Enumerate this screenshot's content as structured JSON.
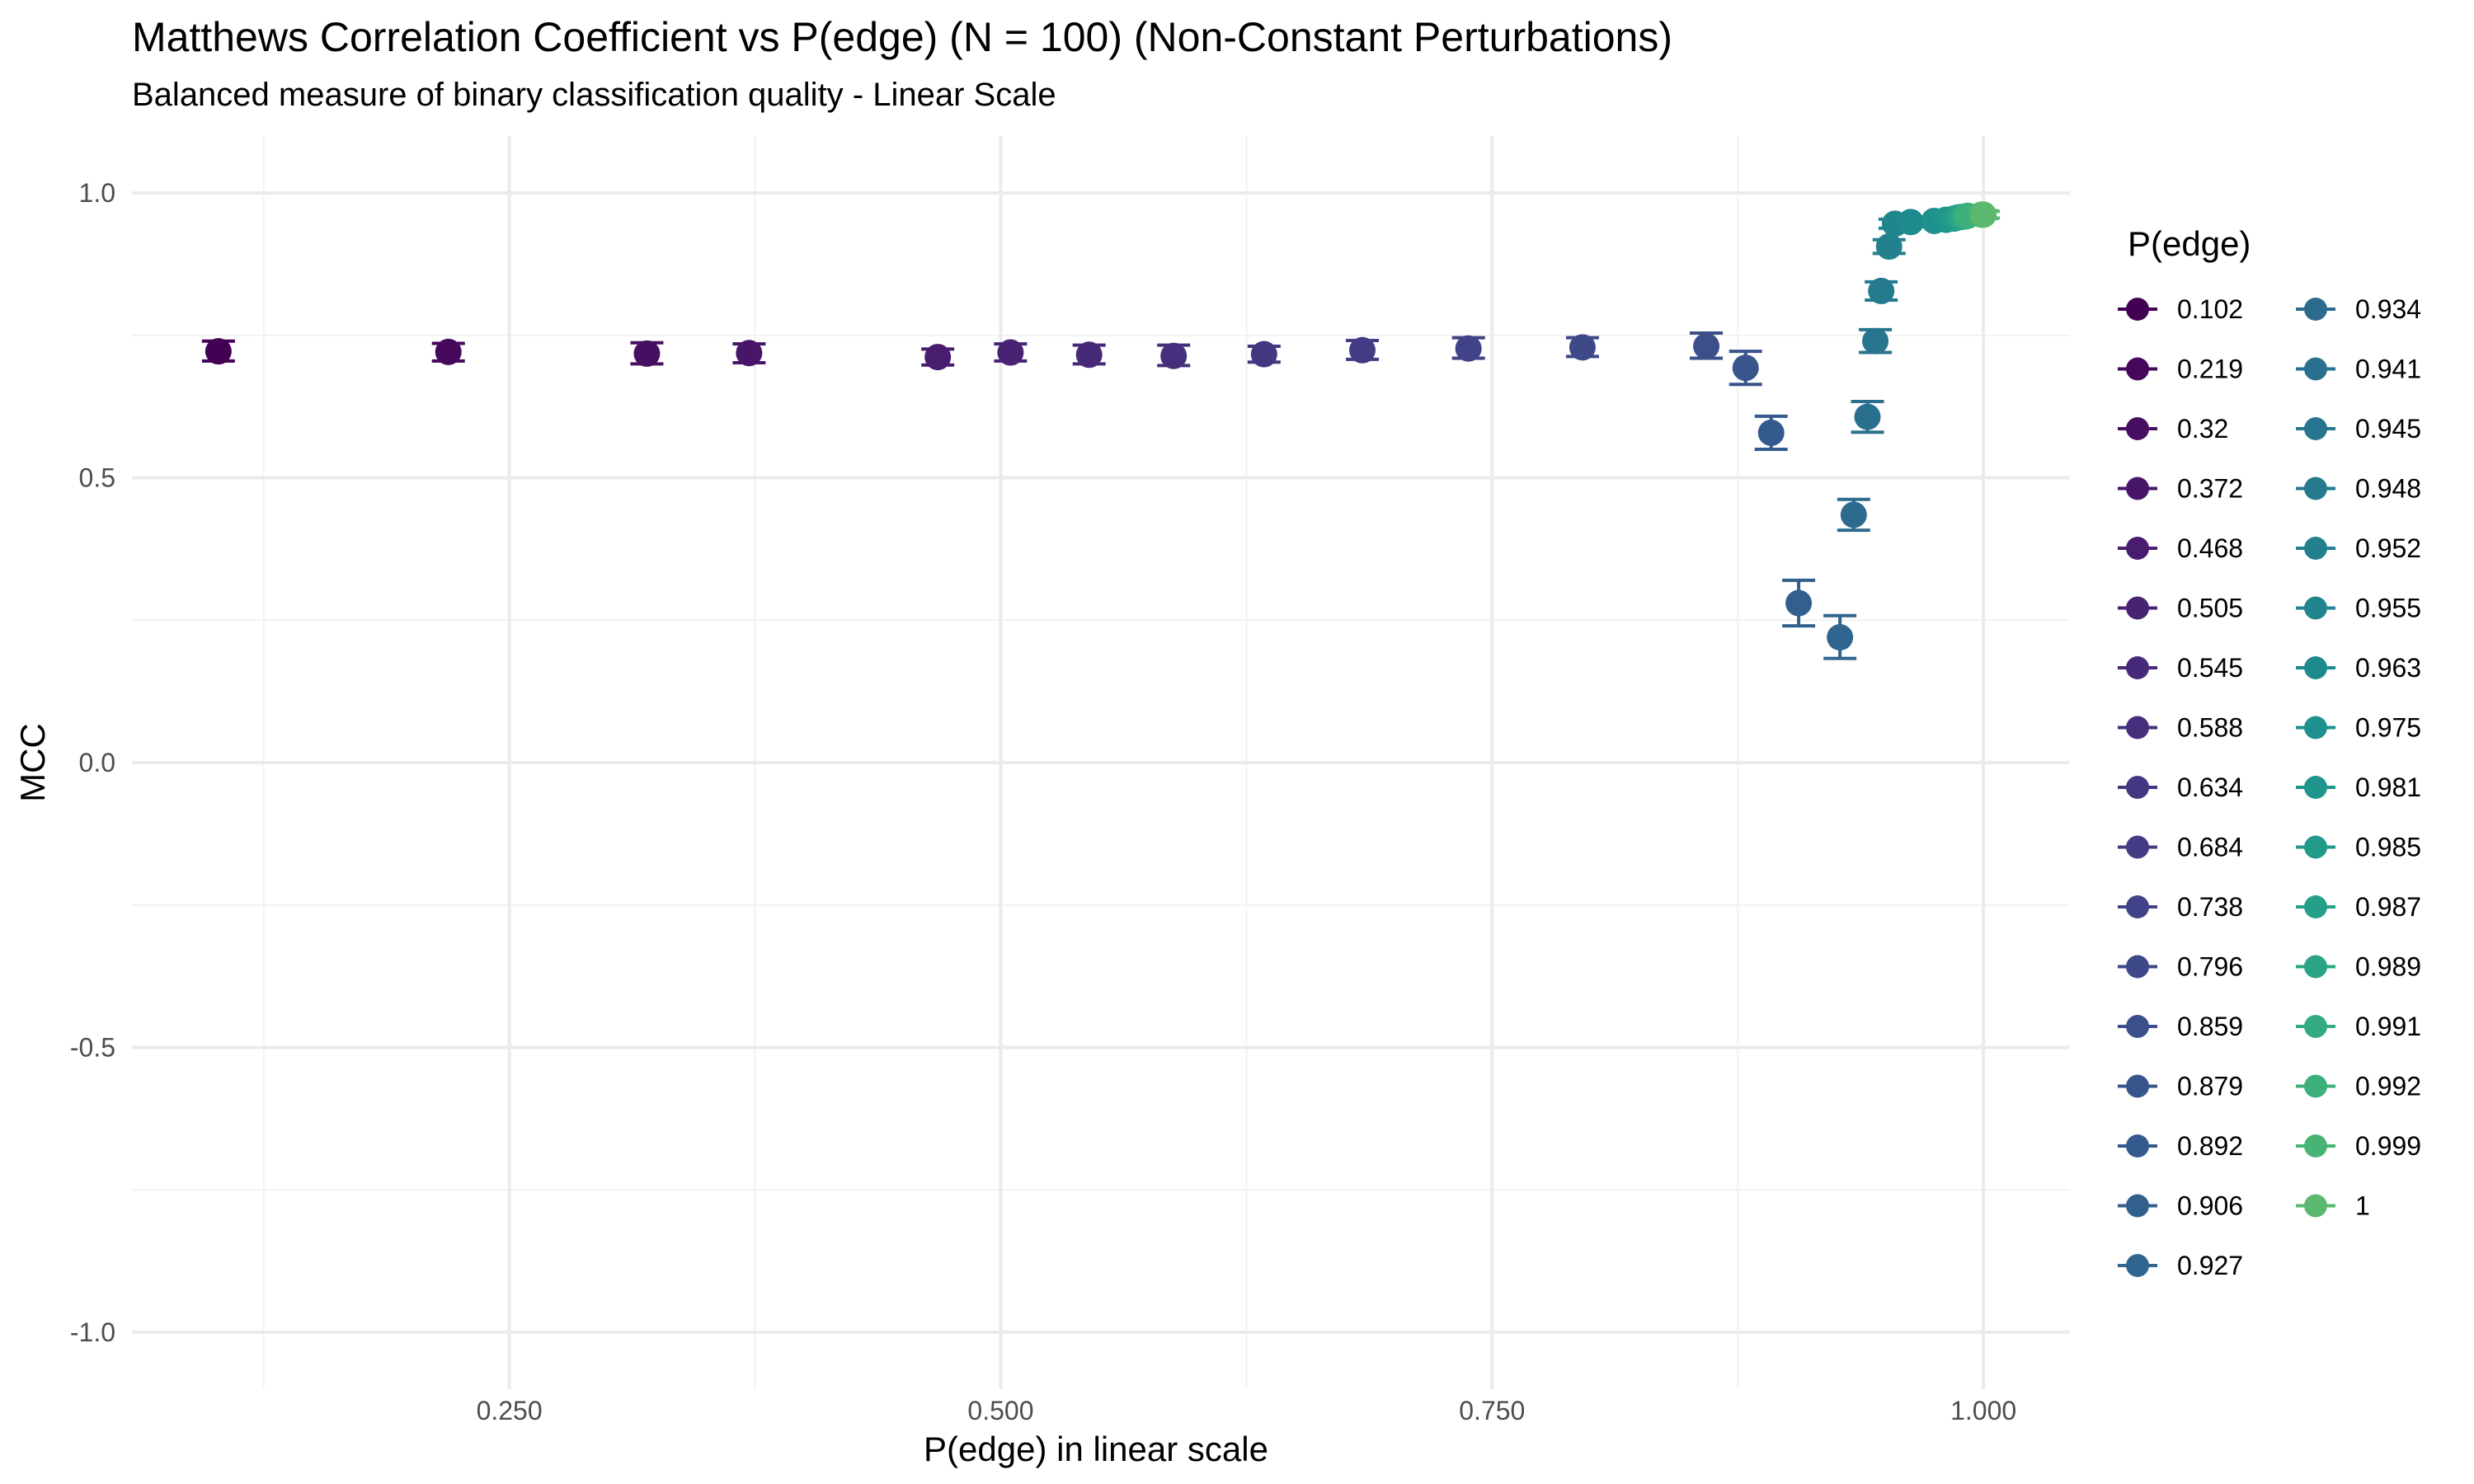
{
  "chart_data": {
    "type": "scatter",
    "title": "Matthews Correlation Coefficient vs P(edge) (N = 100) (Non-Constant Perturbations)",
    "subtitle": "Balanced measure of binary classification quality - Linear Scale",
    "xlabel": "P(edge) in linear scale",
    "ylabel": "MCC",
    "xlim": [
      0.058,
      1.044
    ],
    "ylim": [
      -1.1,
      1.1
    ],
    "x_ticks": [
      0.25,
      0.5,
      0.75,
      1.0
    ],
    "x_tick_labels": [
      "0.250",
      "0.500",
      "0.750",
      "1.000"
    ],
    "y_ticks": [
      1.0,
      0.5,
      0.0,
      -0.5,
      -1.0
    ],
    "y_tick_labels": [
      "1.0",
      "0.5",
      "0.0",
      "-0.5",
      "-1.0"
    ],
    "grid": true,
    "legend_title": "P(edge)",
    "legend_position": "right",
    "error_bars": true,
    "points": [
      {
        "label": "0.102",
        "x": 0.102,
        "y": 0.722,
        "ymin": 0.705,
        "ymax": 0.74,
        "color": "#440154"
      },
      {
        "label": "0.219",
        "x": 0.219,
        "y": 0.721,
        "ymin": 0.705,
        "ymax": 0.736,
        "color": "#45085b"
      },
      {
        "label": "0.32",
        "x": 0.32,
        "y": 0.718,
        "ymin": 0.7,
        "ymax": 0.737,
        "color": "#470f62"
      },
      {
        "label": "0.372",
        "x": 0.372,
        "y": 0.719,
        "ymin": 0.702,
        "ymax": 0.735,
        "color": "#471669"
      },
      {
        "label": "0.468",
        "x": 0.468,
        "y": 0.712,
        "ymin": 0.698,
        "ymax": 0.726,
        "color": "#481c6e"
      },
      {
        "label": "0.505",
        "x": 0.505,
        "y": 0.72,
        "ymin": 0.705,
        "ymax": 0.735,
        "color": "#482374"
      },
      {
        "label": "0.545",
        "x": 0.545,
        "y": 0.716,
        "ymin": 0.7,
        "ymax": 0.733,
        "color": "#472979"
      },
      {
        "label": "0.588",
        "x": 0.588,
        "y": 0.714,
        "ymin": 0.697,
        "ymax": 0.733,
        "color": "#46307d"
      },
      {
        "label": "0.634",
        "x": 0.634,
        "y": 0.717,
        "ymin": 0.703,
        "ymax": 0.731,
        "color": "#453681"
      },
      {
        "label": "0.684",
        "x": 0.684,
        "y": 0.724,
        "ymin": 0.708,
        "ymax": 0.741,
        "color": "#433c84"
      },
      {
        "label": "0.738",
        "x": 0.738,
        "y": 0.727,
        "ymin": 0.71,
        "ymax": 0.746,
        "color": "#414287"
      },
      {
        "label": "0.796",
        "x": 0.796,
        "y": 0.729,
        "ymin": 0.713,
        "ymax": 0.746,
        "color": "#3e4989"
      },
      {
        "label": "0.859",
        "x": 0.859,
        "y": 0.731,
        "ymin": 0.71,
        "ymax": 0.754,
        "color": "#3b4f8a"
      },
      {
        "label": "0.879",
        "x": 0.879,
        "y": 0.693,
        "ymin": 0.664,
        "ymax": 0.722,
        "color": "#38558c"
      },
      {
        "label": "0.892",
        "x": 0.892,
        "y": 0.579,
        "ymin": 0.55,
        "ymax": 0.608,
        "color": "#355a8d"
      },
      {
        "label": "0.906",
        "x": 0.906,
        "y": 0.28,
        "ymin": 0.24,
        "ymax": 0.32,
        "color": "#32608d"
      },
      {
        "label": "0.927",
        "x": 0.927,
        "y": 0.22,
        "ymin": 0.183,
        "ymax": 0.258,
        "color": "#2f658e"
      },
      {
        "label": "0.934",
        "x": 0.934,
        "y": 0.435,
        "ymin": 0.408,
        "ymax": 0.462,
        "color": "#2c6b8e"
      },
      {
        "label": "0.941",
        "x": 0.941,
        "y": 0.607,
        "ymin": 0.58,
        "ymax": 0.634,
        "color": "#2a708e"
      },
      {
        "label": "0.945",
        "x": 0.945,
        "y": 0.74,
        "ymin": 0.72,
        "ymax": 0.76,
        "color": "#27758e"
      },
      {
        "label": "0.948",
        "x": 0.948,
        "y": 0.828,
        "ymin": 0.812,
        "ymax": 0.844,
        "color": "#257a8e"
      },
      {
        "label": "0.952",
        "x": 0.952,
        "y": 0.906,
        "ymin": 0.894,
        "ymax": 0.918,
        "color": "#23808e"
      },
      {
        "label": "0.955",
        "x": 0.955,
        "y": 0.946,
        "ymin": 0.938,
        "ymax": 0.954,
        "color": "#21858e"
      },
      {
        "label": "0.963",
        "x": 0.963,
        "y": 0.949,
        "ymin": 0.941,
        "ymax": 0.957,
        "color": "#1f8a8d"
      },
      {
        "label": "0.975",
        "x": 0.975,
        "y": 0.951,
        "ymin": 0.944,
        "ymax": 0.958,
        "color": "#1e908d"
      },
      {
        "label": "0.981",
        "x": 0.981,
        "y": 0.953,
        "ymin": 0.946,
        "ymax": 0.96,
        "color": "#1f958b"
      },
      {
        "label": "0.985",
        "x": 0.985,
        "y": 0.955,
        "ymin": 0.948,
        "ymax": 0.962,
        "color": "#219a8a"
      },
      {
        "label": "0.987",
        "x": 0.987,
        "y": 0.957,
        "ymin": 0.95,
        "ymax": 0.964,
        "color": "#259f87"
      },
      {
        "label": "0.989",
        "x": 0.989,
        "y": 0.958,
        "ymin": 0.951,
        "ymax": 0.965,
        "color": "#2aa484"
      },
      {
        "label": "0.991",
        "x": 0.991,
        "y": 0.959,
        "ymin": 0.952,
        "ymax": 0.966,
        "color": "#33aa80"
      },
      {
        "label": "0.992",
        "x": 0.992,
        "y": 0.96,
        "ymin": 0.953,
        "ymax": 0.967,
        "color": "#3daf7b"
      },
      {
        "label": "0.999",
        "x": 0.999,
        "y": 0.962,
        "ymin": 0.955,
        "ymax": 0.969,
        "color": "#47b475"
      },
      {
        "label": "1",
        "x": 1.0,
        "y": 0.962,
        "ymin": 0.956,
        "ymax": 0.968,
        "color": "#5ab96e"
      }
    ]
  }
}
